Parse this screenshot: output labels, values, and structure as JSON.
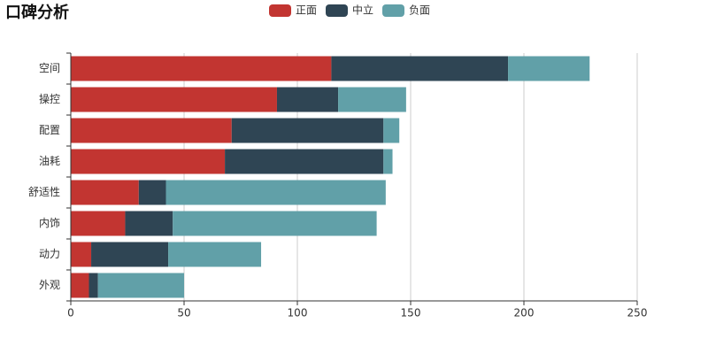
{
  "chart_data": {
    "type": "stacked-hbar",
    "title": "口碑分析",
    "categories": [
      "空间",
      "操控",
      "配置",
      "油耗",
      "舒适性",
      "内饰",
      "动力",
      "外观"
    ],
    "series": [
      {
        "name": "正面",
        "color": "#c23531",
        "values": [
          115,
          91,
          71,
          68,
          30,
          24,
          9,
          8
        ]
      },
      {
        "name": "中立",
        "color": "#2f4554",
        "values": [
          78,
          27,
          67,
          70,
          12,
          21,
          34,
          4
        ]
      },
      {
        "name": "负面",
        "color": "#61a0a8",
        "values": [
          36,
          30,
          7,
          4,
          97,
          90,
          41,
          38
        ]
      }
    ],
    "xlim": [
      0,
      250
    ],
    "xticks": [
      0,
      50,
      100,
      150,
      200,
      250
    ],
    "grid": true,
    "legend": "top"
  }
}
